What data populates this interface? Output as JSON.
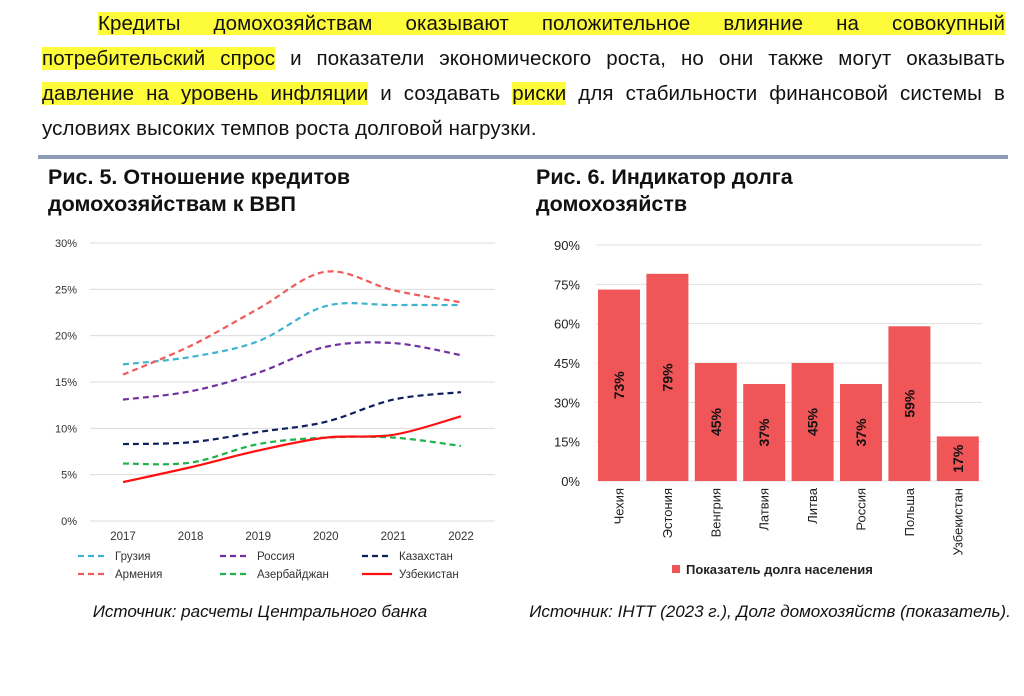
{
  "paragraph": {
    "p1": "Кредиты домохозяйствам оказывают положительное влияние на совокупный потребительский спрос",
    "p2": " и показатели экономического роста, но они также могут оказывать ",
    "p3": "давление на уровень инфляции",
    "p4": " и создавать ",
    "p5": "риски",
    "p6": " для стабильности финансовой системы в условиях высоких темпов роста долговой нагрузки."
  },
  "colors": {
    "highlight": "#fdfb3a",
    "divider": "#8c9bb7",
    "bar": "#f05558"
  },
  "fig5": {
    "title": "Рис. 5. Отношение кредитов домохозяйствам к ВВП",
    "source": "Источник: расчеты Центрального банка"
  },
  "fig6": {
    "title": "Рис. 6. Индикатор долга домохозяйств",
    "source": "Источник: IHTT (2023 г.), Долг домохозяйств (показатель)."
  },
  "chart_data": [
    {
      "type": "line",
      "title": "Рис. 5. Отношение кредитов домохозяйствам к ВВП",
      "x": [
        "2017",
        "2018",
        "2019",
        "2020",
        "2021",
        "2022"
      ],
      "yticks": [
        "0%",
        "5%",
        "10%",
        "15%",
        "20%",
        "25%",
        "30%"
      ],
      "ylim": [
        0,
        30
      ],
      "grid": true,
      "legend": "bottom",
      "series": [
        {
          "name": "Грузия",
          "color": "#3fb3cf",
          "dash": true,
          "values": [
            16.9,
            17.7,
            19.4,
            23.2,
            23.3,
            23.3
          ]
        },
        {
          "name": "Россия",
          "color": "#7030a0",
          "dash": true,
          "values": [
            13.1,
            14.0,
            16.0,
            18.8,
            19.2,
            17.9
          ]
        },
        {
          "name": "Казахстан",
          "color": "#0d1f5c",
          "dash": true,
          "values": [
            8.3,
            8.5,
            9.6,
            10.7,
            13.1,
            13.9
          ]
        },
        {
          "name": "Армения",
          "color": "#f05a5a",
          "dash": true,
          "values": [
            15.8,
            18.9,
            22.9,
            26.9,
            24.9,
            23.6
          ]
        },
        {
          "name": "Азербайджан",
          "color": "#1db34a",
          "dash": true,
          "values": [
            6.2,
            6.3,
            8.3,
            9.0,
            9.0,
            8.1
          ]
        },
        {
          "name": "Узбекистан",
          "color": "#ff1010",
          "dash": false,
          "values": [
            4.2,
            5.8,
            7.6,
            9.0,
            9.3,
            11.3
          ]
        }
      ]
    },
    {
      "type": "bar",
      "title": "Рис. 6. Индикатор долга домохозяйств",
      "categories": [
        "Чехия",
        "Эстония",
        "Венгрия",
        "Латвия",
        "Литва",
        "Россия",
        "Польша",
        "Узбекистан"
      ],
      "values": [
        73,
        79,
        45,
        37,
        45,
        37,
        59,
        17
      ],
      "labels": [
        "73%",
        "79%",
        "45%",
        "37%",
        "45%",
        "37%",
        "59%",
        "17%"
      ],
      "yticks": [
        "0%",
        "15%",
        "30%",
        "45%",
        "60%",
        "75%",
        "90%"
      ],
      "ylim": [
        0,
        90
      ],
      "grid": true,
      "legend_label": "Показатель долга населения",
      "legend": "bottom"
    }
  ]
}
